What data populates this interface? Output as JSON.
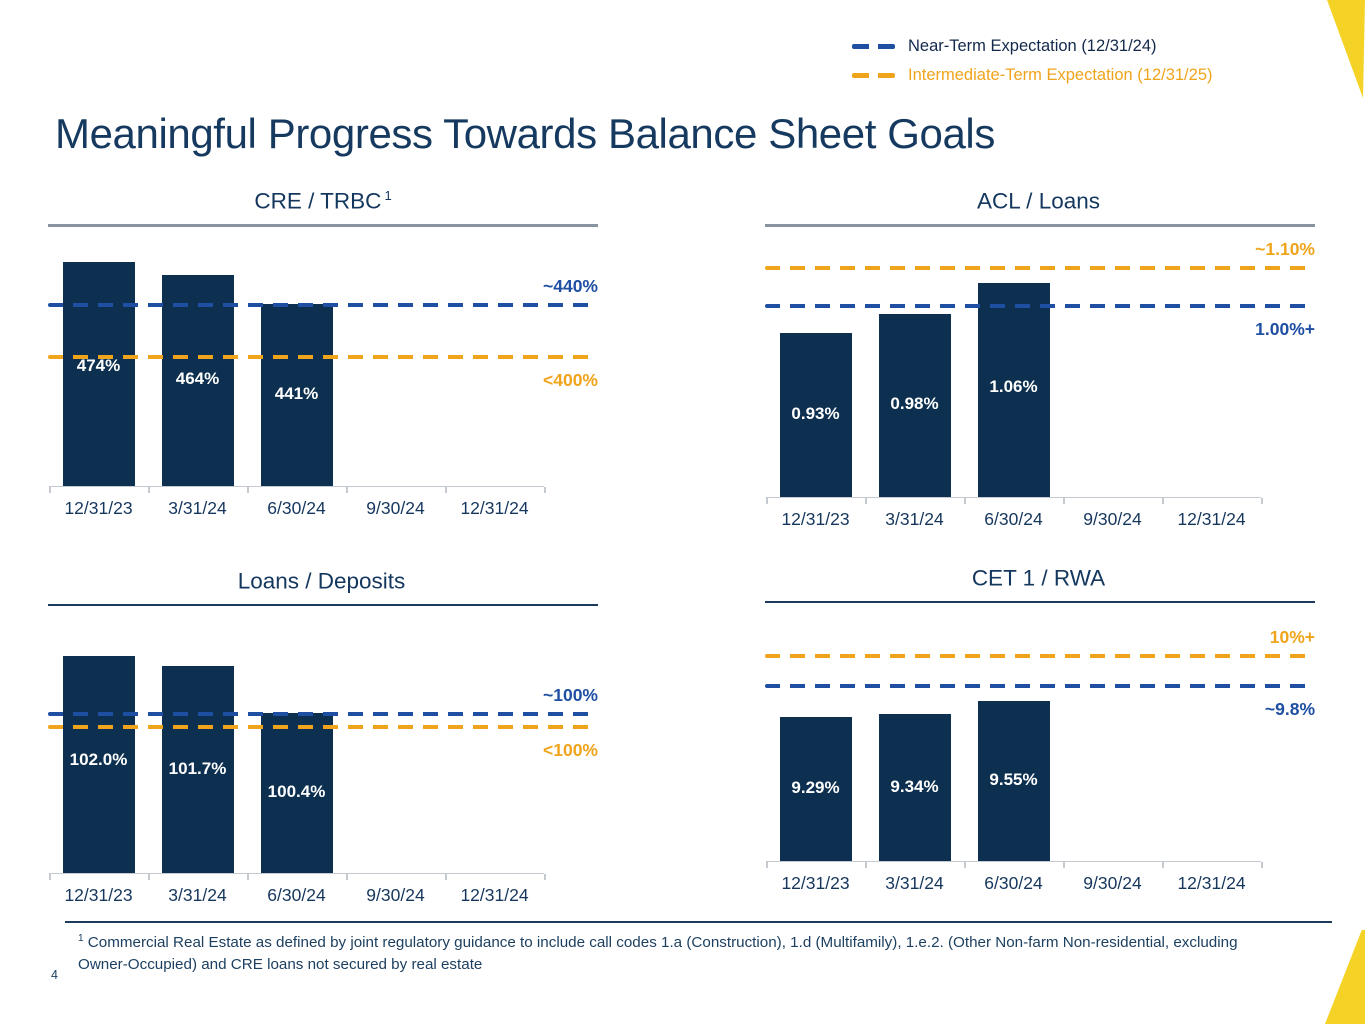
{
  "slide": {
    "title": "Meaningful Progress Towards Balance Sheet Goals",
    "page_number": "4",
    "footnote": {
      "sup": "1",
      "text": "Commercial Real Estate as defined by joint regulatory guidance to include call codes 1.a (Construction), 1.d (Multifamily), 1.e.2. (Other Non-farm Non-residential, excluding Owner-Occupied) and CRE loans not secured by real estate"
    }
  },
  "legend": {
    "items": [
      {
        "label": "Near-Term Expectation (12/31/24)",
        "color": "#1E4FA3"
      },
      {
        "label": "Intermediate-Term Expectation (12/31/25)",
        "color": "#F0A41C"
      }
    ]
  },
  "colors": {
    "bar_navy": "#0D3050",
    "navy_text": "#14375E",
    "blue_line": "#1E4FA3",
    "orange_line": "#F0A41C",
    "yellow_accent": "#F5D226",
    "gray_rule": "#8A93A0"
  },
  "chart_data": [
    {
      "id": "cre-trbc",
      "type": "bar",
      "title": "CRE / TRBC",
      "title_superscript": "1",
      "categories": [
        "12/31/23",
        "3/31/24",
        "6/30/24",
        "9/30/24",
        "12/31/24"
      ],
      "values": [
        474,
        464,
        441,
        null,
        null
      ],
      "value_labels": [
        "474%",
        "464%",
        "441%",
        "",
        ""
      ],
      "ylim": [
        300,
        490
      ],
      "grid": false,
      "legend_position": "top-right",
      "lines": [
        {
          "name": "near-term",
          "legend": "Near-Term Expectation (12/31/24)",
          "label": "~440%",
          "value": 440,
          "color": "#1E4FA3",
          "style": "dashed",
          "label_position": "above"
        },
        {
          "name": "intermediate-term",
          "legend": "Intermediate-Term Expectation (12/31/25)",
          "label": "<400%",
          "value": 400,
          "color": "#F0A41C",
          "style": "dashed",
          "label_position": "below"
        }
      ]
    },
    {
      "id": "acl-loans",
      "type": "bar",
      "title": "ACL / Loans",
      "title_superscript": "",
      "categories": [
        "12/31/23",
        "3/31/24",
        "6/30/24",
        "9/30/24",
        "12/31/24"
      ],
      "values": [
        0.93,
        0.98,
        1.06,
        null,
        null
      ],
      "value_labels": [
        "0.93%",
        "0.98%",
        "1.06%",
        "",
        ""
      ],
      "ylim": [
        0.5,
        1.17
      ],
      "grid": false,
      "lines": [
        {
          "name": "intermediate-term",
          "legend": "Intermediate-Term Expectation (12/31/25)",
          "label": "~1.10%",
          "value": 1.1,
          "color": "#F0A41C",
          "style": "dashed",
          "label_position": "above"
        },
        {
          "name": "near-term",
          "legend": "Near-Term Expectation (12/31/24)",
          "label": "1.00%+",
          "value": 1.0,
          "color": "#1E4FA3",
          "style": "dashed",
          "label_position": "below"
        }
      ]
    },
    {
      "id": "loans-deposits",
      "type": "bar",
      "title": "Loans / Deposits",
      "title_superscript": "",
      "categories": [
        "12/31/23",
        "3/31/24",
        "6/30/24",
        "9/30/24",
        "12/31/24"
      ],
      "values": [
        102.0,
        101.7,
        100.4,
        null,
        null
      ],
      "value_labels": [
        "102.0%",
        "101.7%",
        "100.4%",
        "",
        ""
      ],
      "ylim": [
        95.9,
        103.0
      ],
      "grid": false,
      "lines": [
        {
          "name": "near-term",
          "legend": "Near-Term Expectation (12/31/24)",
          "label": "~100%",
          "value": 100.35,
          "color": "#1E4FA3",
          "style": "dashed",
          "label_position": "above"
        },
        {
          "name": "intermediate-term",
          "legend": "Intermediate-Term Expectation (12/31/25)",
          "label": "<100%",
          "value": 100.0,
          "color": "#F0A41C",
          "style": "dashed",
          "label_position": "below"
        }
      ]
    },
    {
      "id": "cet1-rwa",
      "type": "bar",
      "title": "CET 1 / RWA",
      "title_superscript": "",
      "categories": [
        "12/31/23",
        "3/31/24",
        "6/30/24",
        "9/30/24",
        "12/31/24"
      ],
      "values": [
        9.29,
        9.34,
        9.55,
        null,
        null
      ],
      "value_labels": [
        "9.29%",
        "9.34%",
        "9.55%",
        "",
        ""
      ],
      "ylim": [
        6.95,
        10.92
      ],
      "grid": false,
      "lines": [
        {
          "name": "intermediate-term",
          "legend": "Intermediate-Term Expectation (12/31/25)",
          "label": "10%+",
          "value": 10.28,
          "color": "#F0A41C",
          "style": "dashed",
          "label_position": "above"
        },
        {
          "name": "near-term",
          "legend": "Near-Term Expectation (12/31/24)",
          "label": "~9.8%",
          "value": 9.8,
          "color": "#1E4FA3",
          "style": "dashed",
          "label_position": "below"
        }
      ]
    }
  ]
}
